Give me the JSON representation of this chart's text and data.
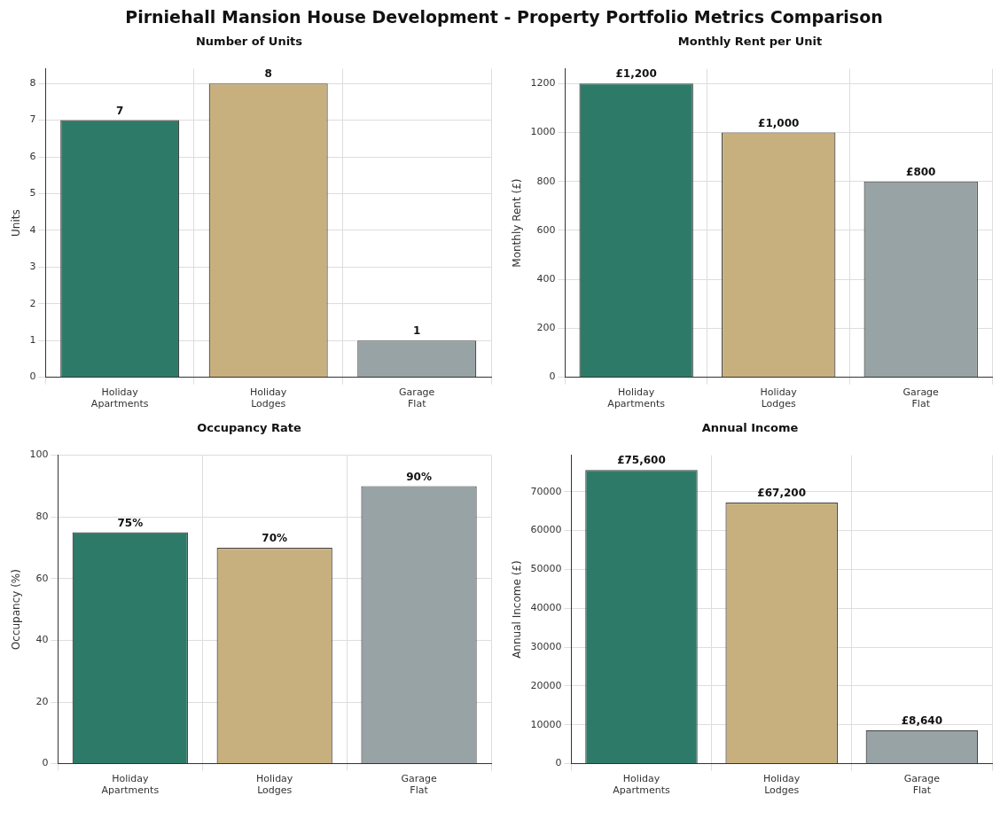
{
  "chart_data": [
    {
      "type": "bar",
      "title": "Number of Units",
      "ylabel": "Units",
      "annotations": [
        "Pirniehall Mansion House Development - Property Portfolio Metrics Comparison"
      ],
      "categories": [
        "Holiday Apartments",
        "Holiday Lodges",
        "Garage Flat"
      ],
      "values": [
        7,
        8,
        1
      ],
      "colors": [
        "#2e7a68",
        "#c8b07e",
        "#98a3a5"
      ],
      "value_labels": [
        "7",
        "8",
        "1"
      ],
      "ylim": [
        0,
        8.4
      ],
      "yticks": [
        0,
        1,
        2,
        3,
        4,
        5,
        6,
        7,
        8
      ],
      "grid": true
    },
    {
      "type": "bar",
      "title": "Monthly Rent per Unit",
      "ylabel": "Monthly Rent (£)",
      "categories": [
        "Holiday Apartments",
        "Holiday Lodges",
        "Garage Flat"
      ],
      "values": [
        1200,
        1000,
        800
      ],
      "colors": [
        "#2e7a68",
        "#c8b07e",
        "#98a3a5"
      ],
      "value_labels": [
        "£1,200",
        "£1,000",
        "£800"
      ],
      "ylim": [
        0,
        1260
      ],
      "yticks": [
        0,
        200,
        400,
        600,
        800,
        1000,
        1200
      ],
      "grid": true
    },
    {
      "type": "bar",
      "title": "Occupancy Rate",
      "ylabel": "Occupancy (%)",
      "categories": [
        "Holiday Apartments",
        "Holiday Lodges",
        "Garage Flat"
      ],
      "values": [
        75,
        70,
        90
      ],
      "colors": [
        "#2e7a68",
        "#c8b07e",
        "#98a3a5"
      ],
      "value_labels": [
        "75%",
        "70%",
        "90%"
      ],
      "ylim": [
        0,
        100
      ],
      "yticks": [
        0,
        20,
        40,
        60,
        80,
        100
      ],
      "grid": true
    },
    {
      "type": "bar",
      "title": "Annual Income",
      "ylabel": "Annual Income (£)",
      "categories": [
        "Holiday Apartments",
        "Holiday Lodges",
        "Garage Flat"
      ],
      "values": [
        75600,
        67200,
        8640
      ],
      "colors": [
        "#2e7a68",
        "#c8b07e",
        "#98a3a5"
      ],
      "value_labels": [
        "£75,600",
        "£67,200",
        "£8,640"
      ],
      "ylim": [
        0,
        79380
      ],
      "yticks": [
        0,
        10000,
        20000,
        30000,
        40000,
        50000,
        60000,
        70000
      ],
      "grid": true
    }
  ]
}
